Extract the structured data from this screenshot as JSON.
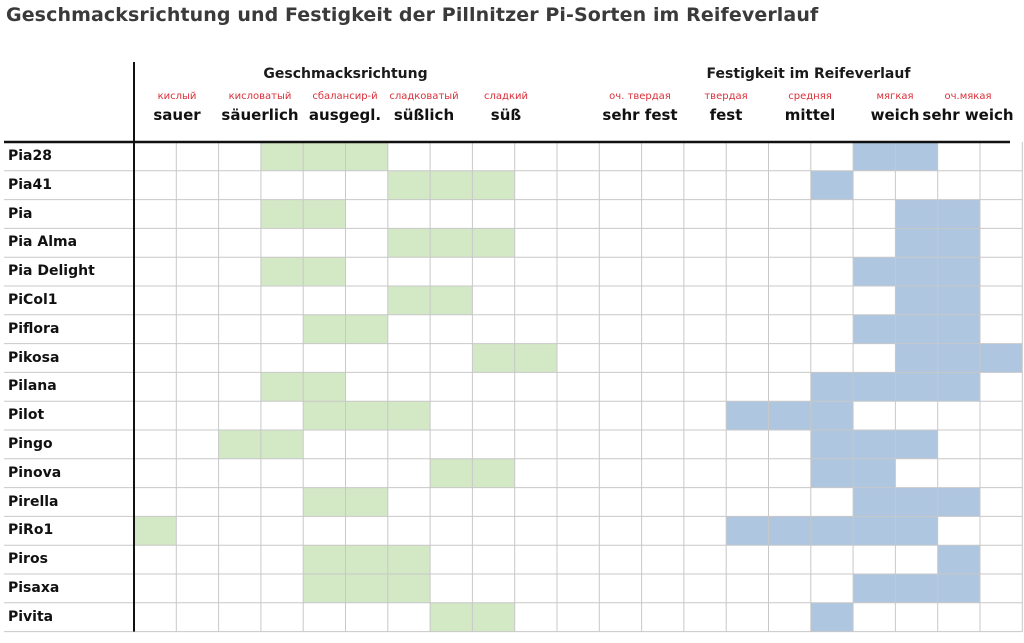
{
  "title": "Geschmacksrichtung und Festigkeit der Pillnitzer Pi-Sorten im Reifeverlauf",
  "colors": {
    "taste_fill": "#d3e8c5",
    "firmness_fill": "#aec6e0",
    "grid_line": "#c8c8c8",
    "axis_line": "#111111",
    "russian_text": "#d9303a"
  },
  "chart_data": {
    "type": "heatmap",
    "title": "Geschmacksrichtung und Festigkeit der Pillnitzer Pi-Sorten im Reifeverlauf",
    "grid_columns": 21,
    "groups": [
      {
        "name": "Geschmacksrichtung",
        "columns": [
          0,
          10
        ]
      },
      {
        "name": "Festigkeit im Reifeverlauf",
        "columns": [
          11,
          20
        ]
      }
    ],
    "taste_categories": [
      {
        "de": "sauer",
        "ru": "кислый"
      },
      {
        "de": "säuerlich",
        "ru": "кисловатый"
      },
      {
        "de": "ausgegl.",
        "ru": "сбалансир-й"
      },
      {
        "de": "süßlich",
        "ru": "сладковатый"
      },
      {
        "de": "süß",
        "ru": "сладкий"
      }
    ],
    "firmness_categories": [
      {
        "de": "sehr fest",
        "ru": "оч. твердая"
      },
      {
        "de": "fest",
        "ru": "твердая"
      },
      {
        "de": "mittel",
        "ru": "средняя"
      },
      {
        "de": "weich",
        "ru": "мягкая"
      },
      {
        "de": "sehr weich",
        "ru": "оч.мякая"
      }
    ],
    "varieties": [
      {
        "name": "Pia28",
        "taste_cols": [
          3,
          5
        ],
        "firm_cols": [
          [
            17,
            18
          ],
          [
            18,
            19
          ]
        ]
      },
      {
        "name": "Pia41",
        "taste_cols": [
          6,
          8
        ],
        "firm_cols": [
          [
            16,
            17
          ]
        ]
      },
      {
        "name": "Pia",
        "taste_cols": [
          3,
          4
        ],
        "firm_cols": [
          [
            18,
            20
          ]
        ]
      },
      {
        "name": "Pia Alma",
        "taste_cols": [
          6,
          8
        ],
        "firm_cols": [
          [
            18,
            20
          ]
        ]
      },
      {
        "name": "Pia Delight",
        "taste_cols": [
          3,
          4
        ],
        "firm_cols": [
          [
            17,
            20
          ]
        ]
      },
      {
        "name": "PiCol1",
        "taste_cols": [
          6,
          7
        ],
        "firm_cols": [
          [
            18,
            20
          ]
        ]
      },
      {
        "name": "Piflora",
        "taste_cols": [
          4,
          5
        ],
        "firm_cols": [
          [
            17,
            20
          ]
        ]
      },
      {
        "name": "Pikosa",
        "taste_cols": [
          8,
          9
        ],
        "firm_cols": [
          [
            18,
            21
          ]
        ]
      },
      {
        "name": "Pilana",
        "taste_cols": [
          3,
          4
        ],
        "firm_cols": [
          [
            16,
            20
          ]
        ]
      },
      {
        "name": "Pilot",
        "taste_cols": [
          4,
          6
        ],
        "firm_cols": [
          [
            14,
            17
          ]
        ]
      },
      {
        "name": "Pingo",
        "taste_cols": [
          2,
          3
        ],
        "firm_cols": [
          [
            16,
            19
          ]
        ]
      },
      {
        "name": "Pinova",
        "taste_cols": [
          7,
          8
        ],
        "firm_cols": [
          [
            16,
            18
          ]
        ]
      },
      {
        "name": "Pirella",
        "taste_cols": [
          4,
          5
        ],
        "firm_cols": [
          [
            17,
            20
          ]
        ]
      },
      {
        "name": "PiRo1",
        "taste_cols": [
          0,
          0
        ],
        "firm_cols": [
          [
            14,
            19
          ]
        ]
      },
      {
        "name": "Piros",
        "taste_cols": [
          4,
          6
        ],
        "firm_cols": [
          [
            19,
            20
          ]
        ]
      },
      {
        "name": "Pisaxa",
        "taste_cols": [
          4,
          6
        ],
        "firm_cols": [
          [
            17,
            20
          ]
        ]
      },
      {
        "name": "Pivita",
        "taste_cols": [
          7,
          8
        ],
        "firm_cols": [
          [
            16,
            17
          ]
        ]
      }
    ]
  }
}
